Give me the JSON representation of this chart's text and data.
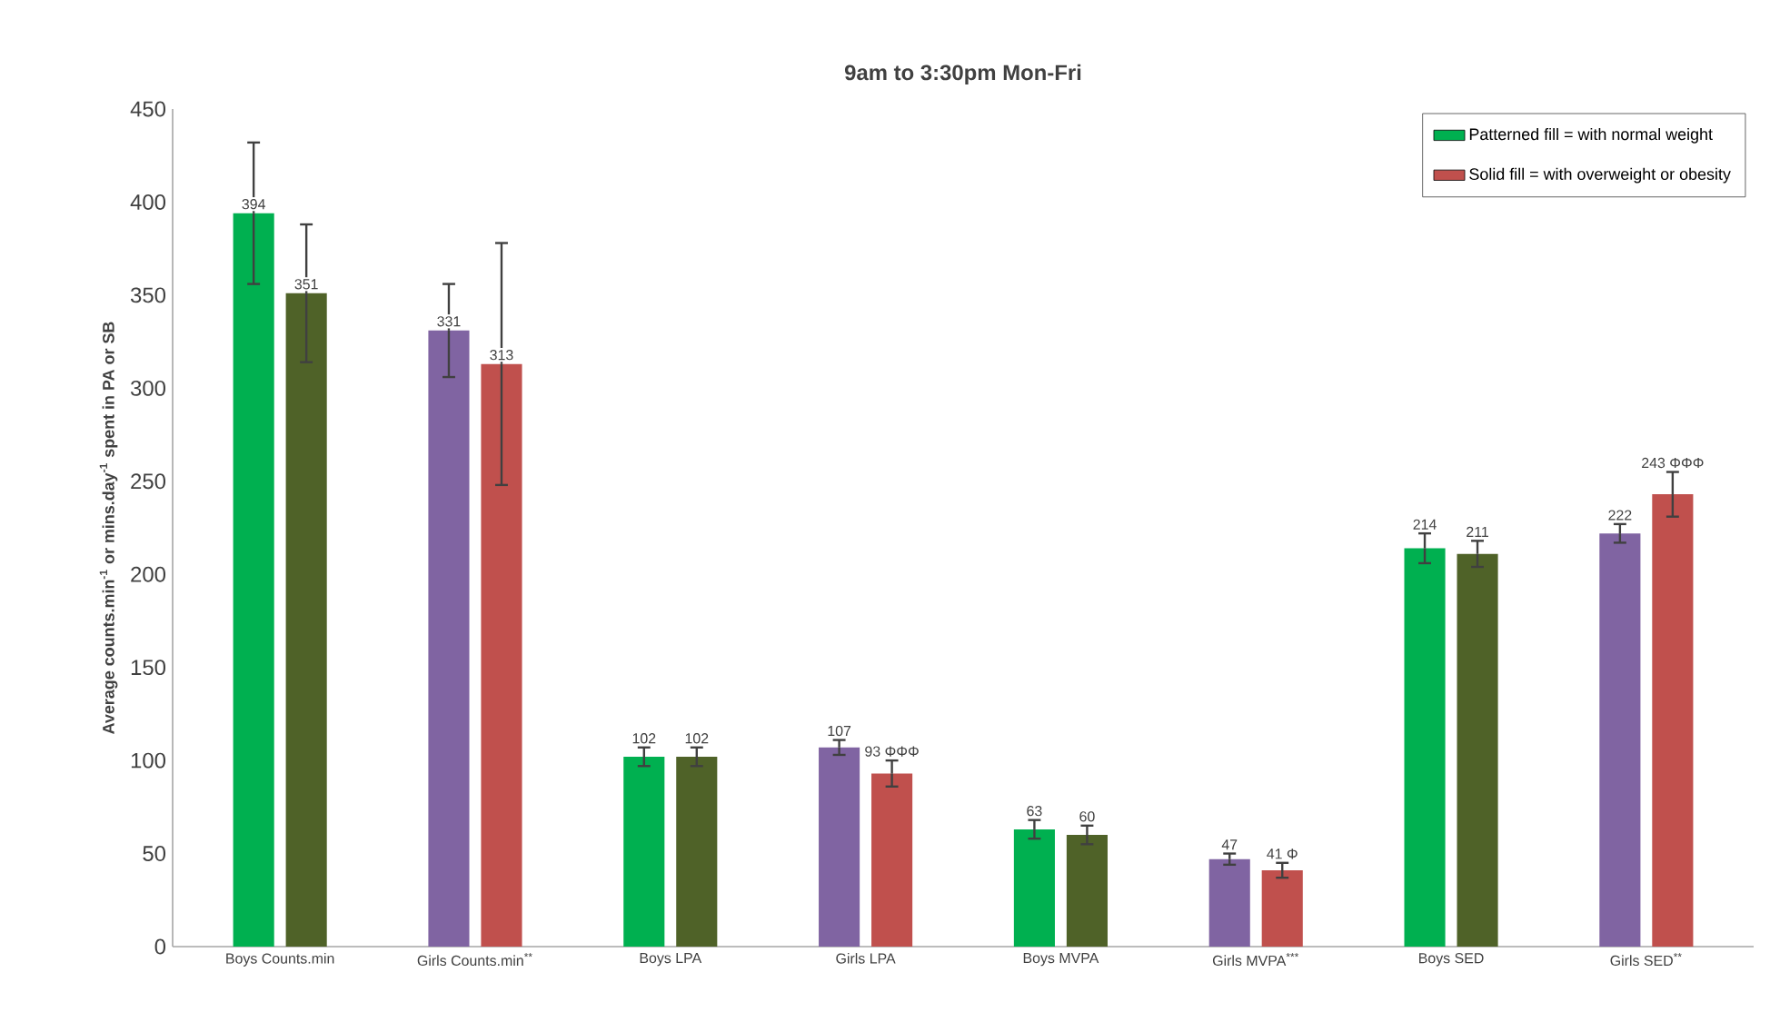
{
  "chart_data": {
    "type": "bar",
    "title": "9am to 3:30pm Mon-Fri",
    "ylabel": "Average counts.min$^{-1}$ or mins.day$^{-1}$ spent in PA or SB",
    "categories": [
      "Boys Counts.min",
      "Girls Counts.min$^{**}$",
      "Boys LPA",
      "Girls LPA",
      "Boys MVPA",
      "Girls MVPA$^{***}$",
      "Boys SED",
      "Girls SED$^{**}$"
    ],
    "series": [
      {
        "name": "Patterned fill = with normal weight",
        "color": "#00b050",
        "colors": [
          "#00b050",
          "#8064a2",
          "#00b050",
          "#8064a2",
          "#00b050",
          "#8064a2",
          "#00b050",
          "#8064a2"
        ],
        "values": [
          394,
          331,
          102,
          107,
          63,
          47,
          214,
          222
        ],
        "errors": [
          38,
          25,
          5,
          4,
          5,
          3,
          8,
          5
        ],
        "value_labels": [
          "394",
          "331",
          "102",
          "107",
          "63",
          "47",
          "214",
          "222"
        ]
      },
      {
        "name": "Solid fill = with overweight or obesity",
        "color": "#c0504d",
        "colors": [
          "#4f6228",
          "#c0504d",
          "#4f6228",
          "#c0504d",
          "#4f6228",
          "#c0504d",
          "#4f6228",
          "#c0504d"
        ],
        "values": [
          351,
          313,
          102,
          93,
          60,
          41,
          211,
          243
        ],
        "errors": [
          37,
          65,
          5,
          7,
          5,
          4,
          7,
          12
        ],
        "value_labels": [
          "351",
          "313",
          "102",
          "93 ΦΦΦ",
          "60",
          "41 Φ",
          "211",
          "243 ΦΦΦ"
        ]
      }
    ],
    "ylim": [
      0,
      450
    ],
    "yticks": [
      0,
      50,
      100,
      150,
      200,
      250,
      300,
      350,
      400,
      450
    ],
    "grid": false,
    "legend": "top right"
  }
}
